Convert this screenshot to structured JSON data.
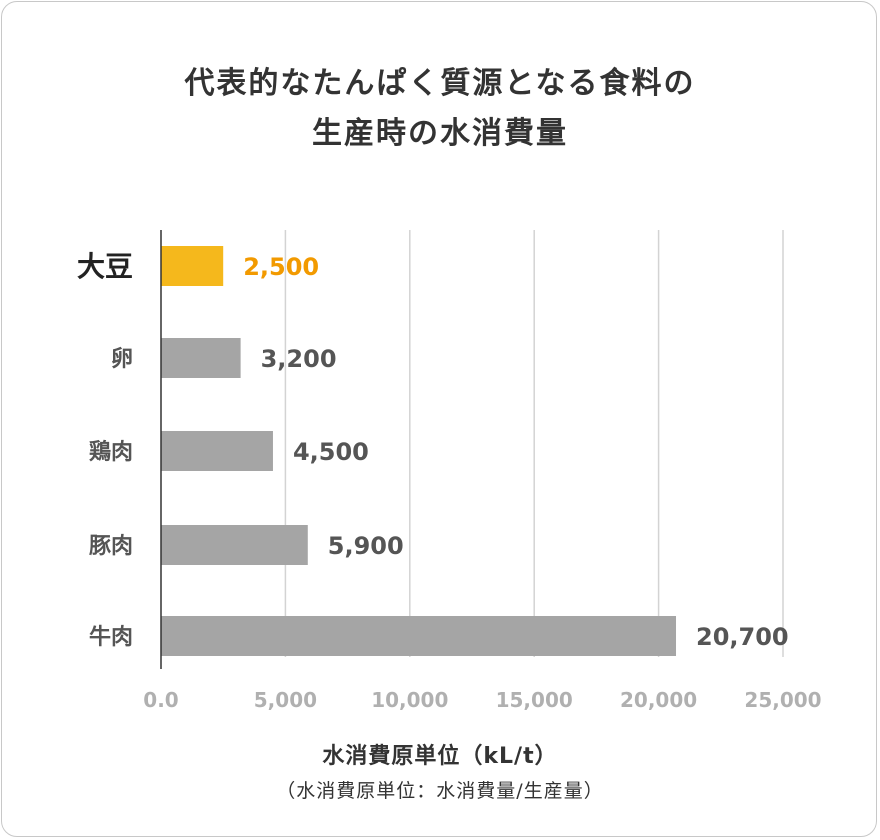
{
  "title": {
    "line1": "代表的なたんぱく質源となる食料の",
    "line2": "生産時の水消費量"
  },
  "chart_data": {
    "type": "bar",
    "orientation": "horizontal",
    "categories": [
      "大豆",
      "卵",
      "鶏肉",
      "豚肉",
      "牛肉"
    ],
    "values": [
      2500,
      3200,
      4500,
      5900,
      20700
    ],
    "value_labels": [
      "2,500",
      "3,200",
      "4,500",
      "5,900",
      "20,700"
    ],
    "highlight_index": 0,
    "xlim": [
      0,
      25000
    ],
    "xticks": [
      0,
      5000,
      10000,
      15000,
      20000,
      25000
    ],
    "xtick_labels": [
      "0.0",
      "5,000",
      "10,000",
      "15,000",
      "20,000",
      "25,000"
    ],
    "grid": "vertical",
    "xlabel": "水消費原単位（kL/t）",
    "xlabel_note": "（水消費原単位：水消費量/生産量）"
  },
  "colors": {
    "highlight": "#f5b81c",
    "highlight_text": "#f29a00",
    "bar": "#a5a5a5",
    "value_text": "#555555",
    "category_text": "#555555",
    "highlight_category_text": "#222222",
    "tick_text": "#b0b0b0",
    "grid": "#d3d3d3",
    "axis": "#333333"
  }
}
